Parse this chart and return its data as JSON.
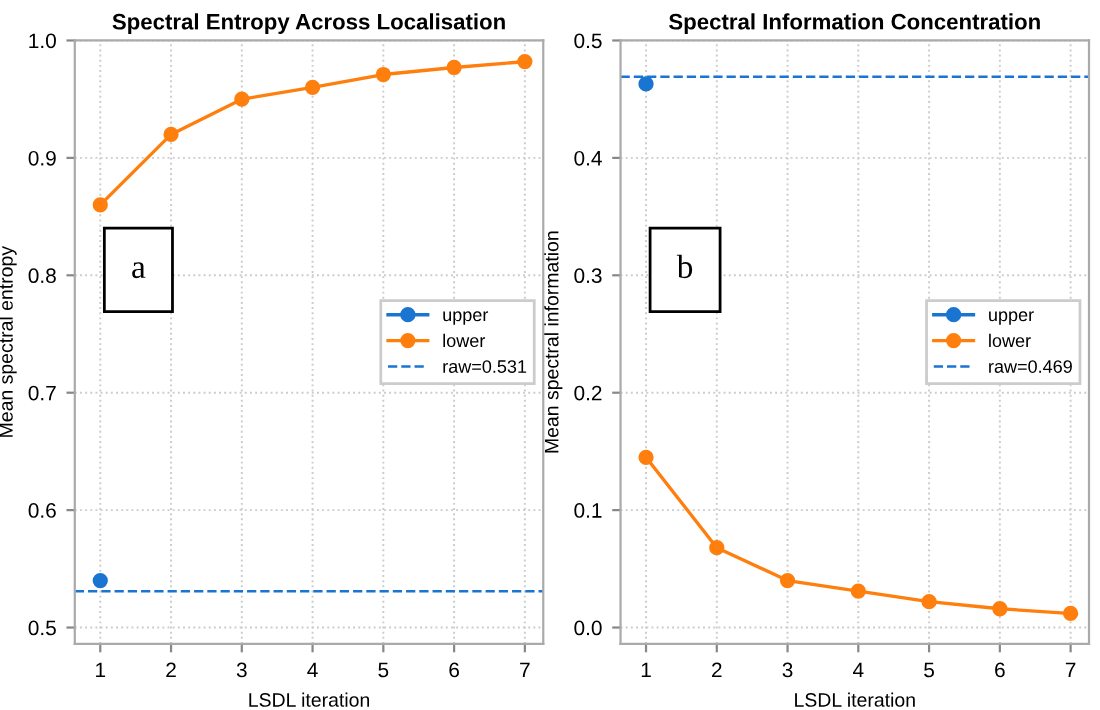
{
  "chart_data": [
    {
      "type": "line",
      "title": "Spectral Entropy Across Localisation",
      "xlabel": "LSDL iteration",
      "ylabel": "Mean spectral entropy",
      "x": [
        1,
        2,
        3,
        4,
        5,
        6,
        7
      ],
      "series": [
        {
          "name": "upper",
          "color": "#1a74d2",
          "x": [
            1
          ],
          "values": [
            0.54
          ]
        },
        {
          "name": "lower",
          "color": "#ff7f0e",
          "values": [
            0.86,
            0.92,
            0.95,
            0.96,
            0.971,
            0.977,
            0.982
          ]
        }
      ],
      "ref_lines": [
        {
          "axis": "y",
          "value": 0.531,
          "label": "raw=0.531",
          "color": "#1a74d2",
          "line_style": "dashed"
        }
      ],
      "annotations": [
        "a"
      ],
      "xlim": [
        0.64,
        7.26
      ],
      "ylim": [
        0.486,
        1.0
      ],
      "xticks": [
        1,
        2,
        3,
        4,
        5,
        6,
        7
      ],
      "yticks": [
        0.5,
        0.6,
        0.7,
        0.8,
        0.9,
        {
          "value": 1,
          "label": "1.0"
        }
      ],
      "grid": true,
      "legend": "center right",
      "marker": "circle",
      "line_style": "solid"
    },
    {
      "type": "line",
      "title": "Spectral Information Concentration",
      "xlabel": "LSDL iteration",
      "ylabel": "Mean spectral information",
      "x": [
        1,
        2,
        3,
        4,
        5,
        6,
        7
      ],
      "series": [
        {
          "name": "upper",
          "color": "#1a74d2",
          "x": [
            1
          ],
          "values": [
            0.463
          ]
        },
        {
          "name": "lower",
          "color": "#ff7f0e",
          "values": [
            0.145,
            0.068,
            0.04,
            0.031,
            0.022,
            0.016,
            0.012
          ]
        }
      ],
      "ref_lines": [
        {
          "axis": "y",
          "value": 0.469,
          "label": "raw=0.469",
          "color": "#1a74d2",
          "line_style": "dashed"
        }
      ],
      "annotations": [
        "b"
      ],
      "xlim": [
        0.64,
        7.26
      ],
      "ylim": [
        -0.014,
        0.5
      ],
      "xticks": [
        1,
        2,
        3,
        4,
        5,
        6,
        7
      ],
      "yticks": [
        {
          "value": 0,
          "label": "0.0"
        },
        0.1,
        0.2,
        0.3,
        0.4,
        0.5
      ],
      "grid": true,
      "legend": "center right",
      "marker": "circle",
      "line_style": "solid"
    }
  ]
}
